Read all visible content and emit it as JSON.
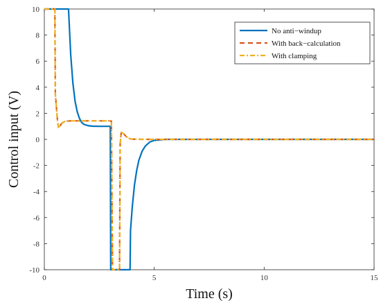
{
  "chart_data": {
    "type": "line",
    "title": "",
    "xlabel": "Time (s)",
    "ylabel": "Control input (V)",
    "xlim": [
      0,
      15
    ],
    "ylim": [
      -10,
      10
    ],
    "x_ticks": [
      "0",
      "5",
      "10",
      "15"
    ],
    "y_ticks": [
      "10",
      "8",
      "6",
      "4",
      "2",
      "0",
      "-2",
      "-4",
      "-6",
      "-8",
      "-10"
    ],
    "grid": false,
    "legend_position": "top-right",
    "series": [
      {
        "name": "No anti−windup",
        "color": "#0072BD",
        "style": "solid",
        "x": [
          0,
          1.1,
          1.2,
          1.3,
          1.4,
          1.5,
          1.6,
          1.7,
          1.8,
          2.0,
          2.2,
          2.5,
          3.0,
          3.02,
          3.9,
          3.92,
          4.0,
          4.1,
          4.2,
          4.3,
          4.45,
          4.6,
          4.8,
          5.0,
          5.5,
          15
        ],
        "y": [
          10,
          10,
          6.5,
          4.3,
          2.9,
          2.1,
          1.6,
          1.3,
          1.15,
          1.05,
          1.01,
          1.0,
          1.0,
          -10,
          -10,
          -7.0,
          -5.2,
          -3.5,
          -2.4,
          -1.6,
          -0.9,
          -0.5,
          -0.2,
          -0.08,
          0,
          0
        ]
      },
      {
        "name": "With back−calculation",
        "color": "#D95319",
        "style": "dashed",
        "x": [
          0,
          0.48,
          0.5,
          0.6,
          0.65,
          0.7,
          0.8,
          0.9,
          1.0,
          1.2,
          1.5,
          2.0,
          2.5,
          3.0,
          3.05,
          3.1,
          3.42,
          3.45,
          3.5,
          3.6,
          3.7,
          3.8,
          3.9,
          4.0,
          4.5,
          5.0,
          15
        ],
        "y": [
          10,
          10,
          3.5,
          1.4,
          0.85,
          1.0,
          1.25,
          1.35,
          1.4,
          1.42,
          1.42,
          1.42,
          1.42,
          1.42,
          1.4,
          -10,
          -10,
          -0.3,
          0.55,
          0.45,
          0.25,
          0.12,
          0.05,
          0.02,
          0,
          0,
          0
        ]
      },
      {
        "name": "With clamping",
        "color": "#EDB120",
        "style": "dashdot",
        "x": [
          0,
          0.48,
          0.5,
          0.6,
          0.65,
          0.7,
          0.8,
          0.9,
          1.0,
          1.2,
          1.5,
          2.0,
          2.5,
          3.0,
          3.05,
          3.1,
          3.42,
          3.45,
          3.5,
          3.6,
          3.7,
          3.8,
          3.9,
          4.0,
          4.5,
          5.0,
          15
        ],
        "y": [
          10,
          10,
          3.5,
          1.4,
          0.85,
          1.0,
          1.25,
          1.35,
          1.4,
          1.42,
          1.42,
          1.42,
          1.42,
          1.42,
          1.4,
          -10,
          -10,
          -0.3,
          0.55,
          0.45,
          0.25,
          0.12,
          0.05,
          0.02,
          0,
          0,
          0
        ]
      }
    ]
  }
}
